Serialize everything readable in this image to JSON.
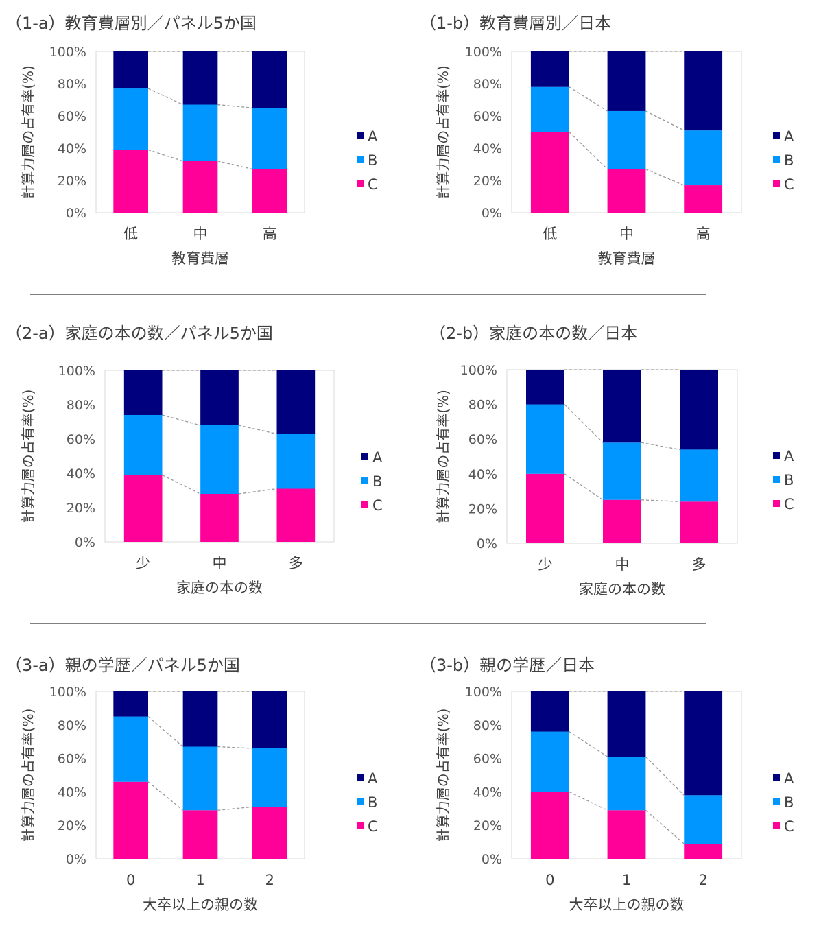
{
  "colors": {
    "A": "#00007f",
    "B": "#0096ff",
    "C": "#ff0099",
    "axis_text": "#595959",
    "connector": "#999999"
  },
  "chart_data": [
    {
      "id": "1a",
      "type": "bar",
      "stacked": true,
      "title": "（1-a）教育費層別／パネル5か国",
      "xlabel": "教育費層",
      "ylabel": "計算力層の占有率(%)",
      "categories": [
        "低",
        "中",
        "高"
      ],
      "ylim": [
        0,
        100
      ],
      "yticks": [
        "0%",
        "20%",
        "40%",
        "60%",
        "80%",
        "100%"
      ],
      "series": [
        {
          "name": "C",
          "values": [
            39,
            32,
            27
          ]
        },
        {
          "name": "B",
          "values": [
            38,
            35,
            38
          ]
        },
        {
          "name": "A",
          "values": [
            23,
            33,
            35
          ]
        }
      ],
      "legend": [
        "A",
        "B",
        "C"
      ],
      "legend_position": "right",
      "grid": false
    },
    {
      "id": "1b",
      "type": "bar",
      "stacked": true,
      "title": "（1-b）教育費層別／日本",
      "xlabel": "教育費層",
      "ylabel": "計算力層の占有率(%)",
      "categories": [
        "低",
        "中",
        "高"
      ],
      "ylim": [
        0,
        100
      ],
      "yticks": [
        "0%",
        "20%",
        "40%",
        "60%",
        "80%",
        "100%"
      ],
      "series": [
        {
          "name": "C",
          "values": [
            50,
            27,
            17
          ]
        },
        {
          "name": "B",
          "values": [
            28,
            36,
            34
          ]
        },
        {
          "name": "A",
          "values": [
            22,
            37,
            49
          ]
        }
      ],
      "legend": [
        "A",
        "B",
        "C"
      ],
      "legend_position": "right",
      "grid": false
    },
    {
      "id": "2a",
      "type": "bar",
      "stacked": true,
      "title": "（2-a）家庭の本の数／パネル5か国",
      "xlabel": "家庭の本の数",
      "ylabel": "計算力層の占有率(%)",
      "categories": [
        "少",
        "中",
        "多"
      ],
      "ylim": [
        0,
        100
      ],
      "yticks": [
        "0%",
        "20%",
        "40%",
        "60%",
        "80%",
        "100%"
      ],
      "series": [
        {
          "name": "C",
          "values": [
            39,
            28,
            31
          ]
        },
        {
          "name": "B",
          "values": [
            35,
            40,
            32
          ]
        },
        {
          "name": "A",
          "values": [
            26,
            32,
            37
          ]
        }
      ],
      "legend": [
        "A",
        "B",
        "C"
      ],
      "legend_position": "right",
      "grid": false
    },
    {
      "id": "2b",
      "type": "bar",
      "stacked": true,
      "title": "（2-b）家庭の本の数／日本",
      "xlabel": "家庭の本の数",
      "ylabel": "計算力層の占有率(%)",
      "categories": [
        "少",
        "中",
        "多"
      ],
      "ylim": [
        0,
        100
      ],
      "yticks": [
        "0%",
        "20%",
        "40%",
        "60%",
        "80%",
        "100%"
      ],
      "series": [
        {
          "name": "C",
          "values": [
            40,
            25,
            24
          ]
        },
        {
          "name": "B",
          "values": [
            40,
            33,
            30
          ]
        },
        {
          "name": "A",
          "values": [
            20,
            42,
            46
          ]
        }
      ],
      "legend": [
        "A",
        "B",
        "C"
      ],
      "legend_position": "right",
      "grid": false
    },
    {
      "id": "3a",
      "type": "bar",
      "stacked": true,
      "title": "（3-a）親の学歴／パネル5か国",
      "xlabel": "大卒以上の親の数",
      "ylabel": "計算力層の占有率(%)",
      "categories": [
        "0",
        "1",
        "2"
      ],
      "ylim": [
        0,
        100
      ],
      "yticks": [
        "0%",
        "20%",
        "40%",
        "60%",
        "80%",
        "100%"
      ],
      "series": [
        {
          "name": "C",
          "values": [
            46,
            29,
            31
          ]
        },
        {
          "name": "B",
          "values": [
            39,
            38,
            35
          ]
        },
        {
          "name": "A",
          "values": [
            15,
            33,
            34
          ]
        }
      ],
      "legend": [
        "A",
        "B",
        "C"
      ],
      "legend_position": "right",
      "grid": false
    },
    {
      "id": "3b",
      "type": "bar",
      "stacked": true,
      "title": "（3-b）親の学歴／日本",
      "xlabel": "大卒以上の親の数",
      "ylabel": "計算力層の占有率(%)",
      "categories": [
        "0",
        "1",
        "2"
      ],
      "ylim": [
        0,
        100
      ],
      "yticks": [
        "0%",
        "20%",
        "40%",
        "60%",
        "80%",
        "100%"
      ],
      "series": [
        {
          "name": "C",
          "values": [
            40,
            29,
            9
          ]
        },
        {
          "name": "B",
          "values": [
            36,
            32,
            29
          ]
        },
        {
          "name": "A",
          "values": [
            24,
            39,
            62
          ]
        }
      ],
      "legend": [
        "A",
        "B",
        "C"
      ],
      "legend_position": "right",
      "grid": false
    }
  ]
}
